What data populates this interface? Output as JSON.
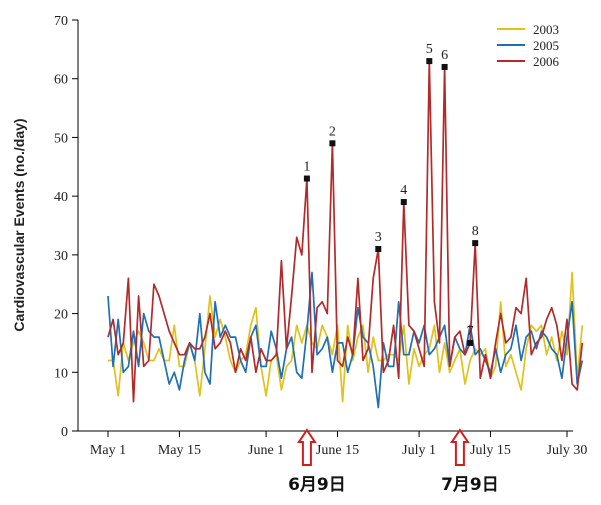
{
  "chart_data": {
    "type": "line",
    "title": "",
    "xlabel": "",
    "ylabel": "Cardiovascular Events (no./day)",
    "ylim": [
      0,
      70
    ],
    "yticks": [
      0,
      10,
      20,
      30,
      40,
      50,
      60,
      70
    ],
    "xlim": [
      0,
      92
    ],
    "xticks": [
      {
        "label": "May 1",
        "day": 0
      },
      {
        "label": "May 15",
        "day": 14
      },
      {
        "label": "June 1",
        "day": 31
      },
      {
        "label": "June 15",
        "day": 45
      },
      {
        "label": "July 1",
        "day": 61
      },
      {
        "label": "July 15",
        "day": 75
      },
      {
        "label": "July 30",
        "day": 90
      }
    ],
    "legend_position": "top-right",
    "grid": false,
    "series": [
      {
        "name": "2003",
        "color": "#e0c21a",
        "values": [
          12,
          12,
          6,
          15,
          12,
          15,
          17,
          15,
          12,
          12,
          14,
          12,
          12,
          18,
          11,
          11,
          15,
          12,
          6,
          14,
          23,
          16,
          19,
          16,
          12,
          10,
          12,
          13,
          18,
          21,
          11,
          6,
          12,
          13,
          7,
          11,
          12,
          18,
          15,
          18,
          15,
          14,
          18,
          16,
          13,
          18,
          5,
          18,
          12,
          16,
          18,
          10,
          16,
          12,
          12,
          13,
          13,
          12,
          18,
          8,
          14,
          11,
          13,
          14,
          18,
          10,
          15,
          10,
          12,
          14,
          8,
          12,
          14,
          13,
          14,
          9,
          11,
          22,
          11,
          13,
          10,
          7,
          14,
          18,
          17,
          18,
          13,
          16,
          12,
          17,
          13,
          27,
          9,
          18
        ]
      },
      {
        "name": "2005",
        "color": "#1f6fb4",
        "values": [
          23,
          11,
          19,
          10,
          11,
          17,
          11,
          20,
          17,
          16,
          16,
          12,
          8,
          10,
          7,
          12,
          15,
          12,
          20,
          10,
          8,
          22,
          16,
          18,
          16,
          16,
          12,
          10,
          16,
          18,
          11,
          11,
          17,
          14,
          9,
          14,
          16,
          10,
          9,
          17,
          27,
          13,
          14,
          16,
          10,
          15,
          15,
          10,
          13,
          21,
          16,
          15,
          11,
          4,
          15,
          11,
          11,
          22,
          13,
          13,
          17,
          15,
          18,
          13,
          14,
          16,
          18,
          11,
          16,
          14,
          13,
          18,
          13,
          14,
          12,
          10,
          14,
          10,
          13,
          14,
          18,
          12,
          16,
          17,
          14,
          17,
          16,
          14,
          13,
          9,
          16,
          22,
          8,
          12
        ]
      },
      {
        "name": "2006",
        "color": "#b22a2a",
        "values": [
          16,
          19,
          13,
          15,
          26,
          5,
          23,
          11,
          12,
          25,
          23,
          20,
          17,
          15,
          13,
          13,
          15,
          14,
          14,
          16,
          20,
          14,
          15,
          17,
          15,
          10,
          14,
          12,
          16,
          10,
          14,
          12,
          12,
          13,
          29,
          14,
          23,
          33,
          30,
          43,
          10,
          21,
          22,
          20,
          49,
          12,
          11,
          16,
          13,
          26,
          12,
          14,
          26,
          31,
          10,
          12,
          18,
          9,
          39,
          18,
          17,
          14,
          11,
          63,
          22,
          15,
          62,
          11,
          16,
          17,
          13,
          15,
          32,
          9,
          13,
          9,
          15,
          20,
          15,
          16,
          21,
          20,
          26,
          13,
          15,
          16,
          19,
          21,
          18,
          12,
          19,
          8,
          7,
          15
        ]
      }
    ],
    "annotations": [
      {
        "label": "1",
        "series": "2006",
        "day": 39,
        "value": 43
      },
      {
        "label": "2",
        "series": "2006",
        "day": 44,
        "value": 49
      },
      {
        "label": "3",
        "series": "2006",
        "day": 53,
        "value": 31
      },
      {
        "label": "4",
        "series": "2006",
        "day": 58,
        "value": 39
      },
      {
        "label": "5",
        "series": "2006",
        "day": 63,
        "value": 63
      },
      {
        "label": "6",
        "series": "2006",
        "day": 66,
        "value": 62
      },
      {
        "label": "7",
        "series": "2006",
        "day": 71,
        "value": 15
      },
      {
        "label": "8",
        "series": "2006",
        "day": 72,
        "value": 32
      }
    ],
    "event_markers": [
      {
        "label": "6月9日",
        "day": 39,
        "color": "#cc1f1f"
      },
      {
        "label": "7月9日",
        "day": 69,
        "color": "#cc1f1f"
      }
    ]
  }
}
